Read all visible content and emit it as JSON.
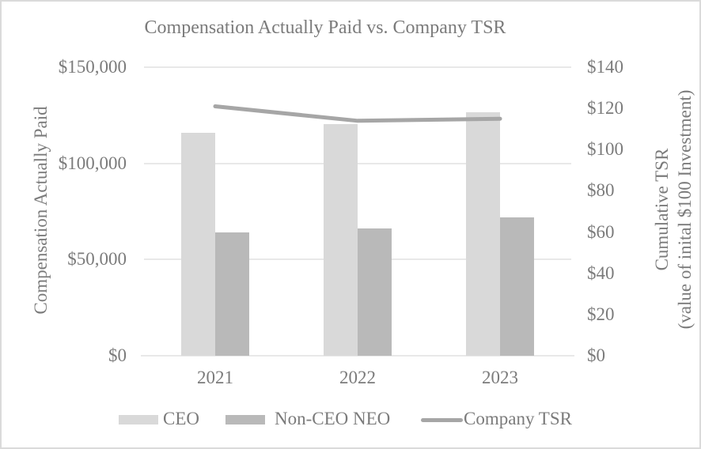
{
  "chart_data": {
    "type": "combo-bar-line",
    "title": "Compensation Actually Paid vs. Company TSR",
    "categories": [
      "2021",
      "2022",
      "2023"
    ],
    "series": [
      {
        "name": "CEO",
        "type": "bar",
        "axis": "left",
        "color": "#d9d9d9",
        "values": [
          116000,
          120500,
          126500
        ]
      },
      {
        "name": "Non-CEO NEO",
        "type": "bar",
        "axis": "left",
        "color": "#b9b9b9",
        "values": [
          64000,
          66000,
          72000
        ]
      },
      {
        "name": "Company TSR",
        "type": "line",
        "axis": "right",
        "color": "#a6a6a6",
        "values": [
          121,
          114,
          115
        ]
      }
    ],
    "left_axis": {
      "title": "Compensation Actually Paid",
      "min": 0,
      "max": 150000,
      "step": 50000,
      "tick_labels": [
        "$0",
        "$50,000",
        "$100,000",
        "$150,000"
      ]
    },
    "right_axis": {
      "title_line1": "Cumulative TSR",
      "title_line2": "(value of inital $100 Investment)",
      "min": 0,
      "max": 140,
      "step": 20,
      "tick_labels": [
        "$0",
        "$20",
        "$40",
        "$60",
        "$80",
        "$100",
        "$120",
        "$140"
      ]
    },
    "grid": true,
    "legend_position": "bottom"
  },
  "styles": {
    "text_color": "#7b7b7b",
    "gridline_color": "#e8e8e8",
    "background": "#ffffff",
    "border_color": "#dadada"
  }
}
